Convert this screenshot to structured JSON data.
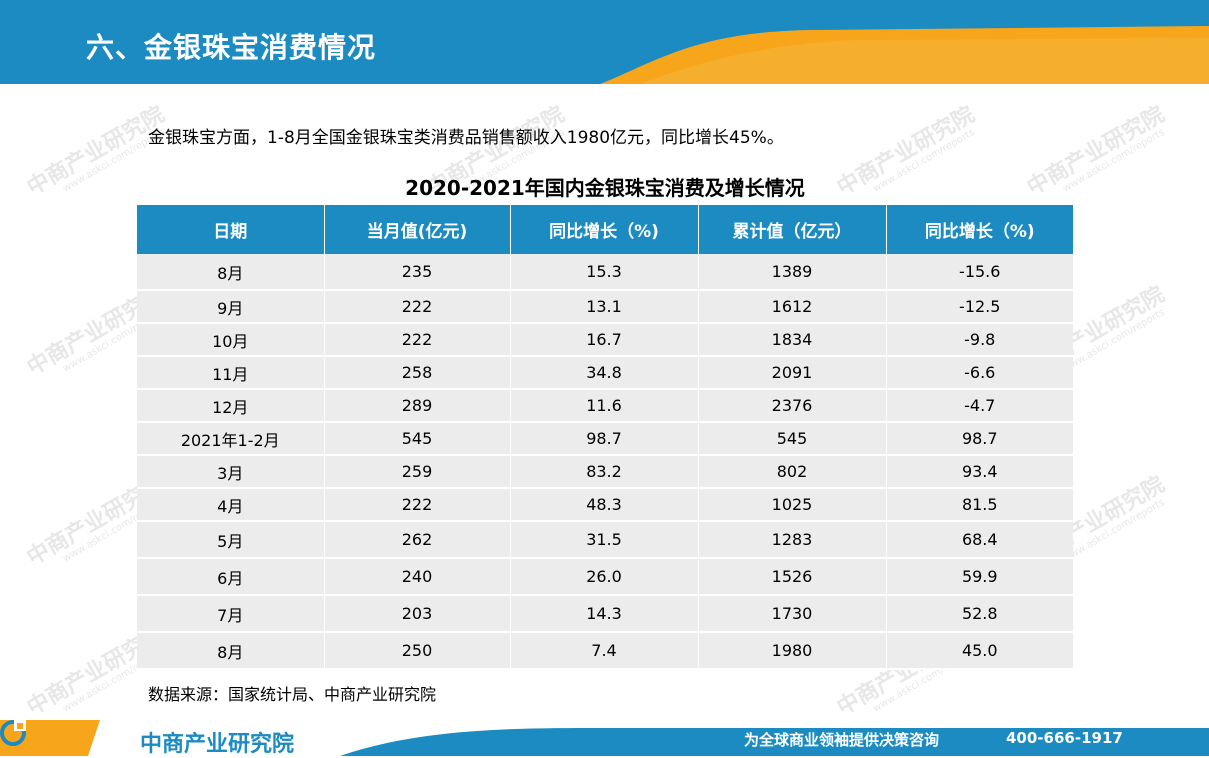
{
  "header": {
    "title": "六、金银珠宝消费情况",
    "colors": {
      "primary": "#1b8bc2",
      "accent": "#f7a61b"
    }
  },
  "intro": "金银珠宝方面，1-8月全国金银珠宝类消费品销售额收入1980亿元，同比增长45%。",
  "table": {
    "title": "2020-2021年国内金银珠宝消费及增长情况",
    "headers": [
      "日期",
      "当月值(亿元)",
      "同比增长（%)",
      "累计值（亿元）",
      "同比增长（%)"
    ],
    "rows": [
      [
        "8月",
        "235",
        "15.3",
        "1389",
        "-15.6"
      ],
      [
        "9月",
        "222",
        "13.1",
        "1612",
        "-12.5"
      ],
      [
        "10月",
        "222",
        "16.7",
        "1834",
        "-9.8"
      ],
      [
        "11月",
        "258",
        "34.8",
        "2091",
        "-6.6"
      ],
      [
        "12月",
        "289",
        "11.6",
        "2376",
        "-4.7"
      ],
      [
        "2021年1-2月",
        "545",
        "98.7",
        "545",
        "98.7"
      ],
      [
        "3月",
        "259",
        "83.2",
        "802",
        "93.4"
      ],
      [
        "4月",
        "222",
        "48.3",
        "1025",
        "81.5"
      ],
      [
        "5月",
        "262",
        "31.5",
        "1283",
        "68.4"
      ],
      [
        "6月",
        "240",
        "26.0",
        "1526",
        "59.9"
      ],
      [
        "7月",
        "203",
        "14.3",
        "1730",
        "52.8"
      ],
      [
        "8月",
        "250",
        "7.4",
        "1980",
        "45.0"
      ]
    ]
  },
  "source": "数据来源：国家统计局、中商产业研究院",
  "watermark": {
    "text": "中商产业研究院",
    "url": "www.askci.com/reports"
  },
  "footer": {
    "logo_text": "中商产业研究院",
    "slogan": "为全球商业领袖提供决策咨询",
    "phone": "400-666-1917"
  }
}
